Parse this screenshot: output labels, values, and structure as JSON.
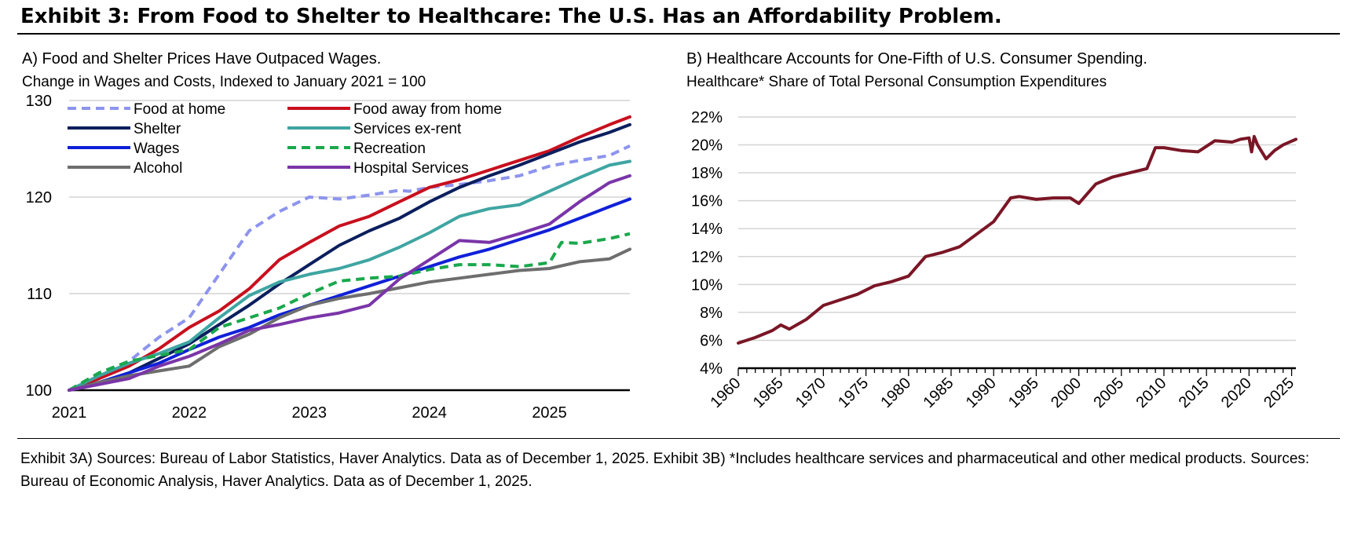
{
  "exhibit_title": "Exhibit 3: From Food to Shelter to Healthcare: The U.S. Has an Affordability Problem.",
  "footnote": "Exhibit 3A) Sources: Bureau of Labor Statistics, Haver Analytics. Data as of December 1, 2025. Exhibit 3B) *Includes healthcare services and pharmaceutical and other medical products. Sources: Bureau of Economic Analysis, Haver Analytics. Data as of December 1, 2025.",
  "chart_data": [
    {
      "type": "line",
      "title": "A) Food and Shelter Prices Have Outpaced Wages.",
      "subtitle": "Change in Wages and Costs, Indexed to January 2021 = 100",
      "xlabel": "",
      "ylabel": "",
      "xlim": [
        2021,
        2025.67
      ],
      "ylim": [
        100,
        130
      ],
      "x_ticks": [
        "2021",
        "2022",
        "2023",
        "2024",
        "2025"
      ],
      "y_ticks": [
        "100",
        "110",
        "120",
        "130"
      ],
      "legend_position": "top-left",
      "series": [
        {
          "name": "Food at home",
          "color": "#8d94ee",
          "dash": "dashed",
          "x": [
            2021,
            2021.25,
            2021.5,
            2021.75,
            2022,
            2022.25,
            2022.5,
            2022.75,
            2023,
            2023.25,
            2023.5,
            2023.75,
            2023.83,
            2024,
            2024.25,
            2024.5,
            2024.75,
            2025,
            2025.25,
            2025.5,
            2025.67
          ],
          "y": [
            100,
            101.5,
            103,
            105.5,
            107.5,
            112,
            116.5,
            118.5,
            120,
            119.8,
            120.2,
            120.7,
            120.6,
            121,
            121.3,
            121.7,
            122.2,
            123.2,
            123.8,
            124.3,
            125.3
          ]
        },
        {
          "name": "Food away from home",
          "color": "#c8101e",
          "dash": "solid",
          "x": [
            2021,
            2021.25,
            2021.5,
            2021.75,
            2022,
            2022.25,
            2022.5,
            2022.75,
            2023,
            2023.25,
            2023.5,
            2023.75,
            2024,
            2024.25,
            2024.5,
            2024.75,
            2025,
            2025.25,
            2025.5,
            2025.67
          ],
          "y": [
            100,
            101.2,
            102.5,
            104.3,
            106.5,
            108.2,
            110.5,
            113.5,
            115.3,
            117,
            118,
            119.5,
            121,
            121.8,
            122.8,
            123.8,
            124.8,
            126.2,
            127.5,
            128.3
          ]
        },
        {
          "name": "Shelter",
          "color": "#0b1f5e",
          "dash": "solid",
          "x": [
            2021,
            2021.25,
            2021.5,
            2021.75,
            2022,
            2022.25,
            2022.5,
            2022.75,
            2023,
            2023.25,
            2023.5,
            2023.75,
            2024,
            2024.25,
            2024.5,
            2024.75,
            2025,
            2025.25,
            2025.5,
            2025.67
          ],
          "y": [
            100,
            100.8,
            101.8,
            103.3,
            104.8,
            106.8,
            108.8,
            111,
            113,
            115,
            116.5,
            117.8,
            119.5,
            121,
            122.2,
            123.3,
            124.5,
            125.7,
            126.7,
            127.5
          ]
        },
        {
          "name": "Services ex-rent",
          "color": "#3fa5a2",
          "dash": "solid",
          "x": [
            2021,
            2021.25,
            2021.5,
            2021.75,
            2022,
            2022.25,
            2022.5,
            2022.75,
            2023,
            2023.25,
            2023.5,
            2023.75,
            2024,
            2024.25,
            2024.5,
            2024.75,
            2025,
            2025.25,
            2025.5,
            2025.67
          ],
          "y": [
            100,
            101.5,
            102.8,
            103.8,
            105,
            107.5,
            109.8,
            111.2,
            112,
            112.6,
            113.5,
            114.8,
            116.3,
            118,
            118.8,
            119.2,
            120.6,
            122,
            123.3,
            123.7
          ]
        },
        {
          "name": "Wages",
          "color": "#1020d8",
          "dash": "solid",
          "x": [
            2021,
            2021.25,
            2021.5,
            2021.75,
            2022,
            2022.25,
            2022.5,
            2022.75,
            2023,
            2023.25,
            2023.5,
            2023.75,
            2024,
            2024.25,
            2024.5,
            2024.75,
            2025,
            2025.25,
            2025.5,
            2025.67
          ],
          "y": [
            100,
            100.8,
            101.8,
            102.8,
            104.2,
            105.5,
            106.5,
            107.8,
            108.8,
            109.8,
            110.8,
            111.8,
            112.8,
            113.8,
            114.6,
            115.6,
            116.6,
            117.8,
            119,
            119.8
          ]
        },
        {
          "name": "Recreation",
          "color": "#1aa84c",
          "dash": "dashed",
          "x": [
            2021,
            2021.25,
            2021.5,
            2021.75,
            2022,
            2022.25,
            2022.5,
            2022.75,
            2023,
            2023.25,
            2023.5,
            2023.75,
            2024,
            2024.25,
            2024.5,
            2024.75,
            2025,
            2025.1,
            2025.25,
            2025.5,
            2025.67
          ],
          "y": [
            100,
            101.8,
            103,
            103.6,
            104.2,
            106.5,
            107.5,
            108.5,
            110,
            111.3,
            111.6,
            111.8,
            112.5,
            113,
            113,
            112.8,
            113.2,
            115.3,
            115.2,
            115.7,
            116.2
          ]
        },
        {
          "name": "Alcohol",
          "color": "#6e6e6e",
          "dash": "solid",
          "x": [
            2021,
            2021.25,
            2021.5,
            2021.75,
            2022,
            2022.25,
            2022.5,
            2022.75,
            2023,
            2023.25,
            2023.5,
            2023.75,
            2024,
            2024.25,
            2024.5,
            2024.75,
            2025,
            2025.25,
            2025.5,
            2025.67
          ],
          "y": [
            100,
            100.8,
            101.5,
            102,
            102.5,
            104.5,
            105.8,
            107.5,
            108.8,
            109.5,
            110,
            110.6,
            111.2,
            111.6,
            112,
            112.4,
            112.6,
            113.3,
            113.6,
            114.6
          ]
        },
        {
          "name": "Hospital Services",
          "color": "#7a35a8",
          "dash": "solid",
          "x": [
            2021,
            2021.25,
            2021.5,
            2021.75,
            2022,
            2022.25,
            2022.5,
            2022.75,
            2023,
            2023.25,
            2023.5,
            2023.75,
            2024,
            2024.25,
            2024.5,
            2024.75,
            2025,
            2025.25,
            2025.5,
            2025.67
          ],
          "y": [
            100,
            100.6,
            101.2,
            102.5,
            103.5,
            104.8,
            106.2,
            106.8,
            107.5,
            108,
            108.8,
            111.5,
            113.5,
            115.5,
            115.3,
            116.2,
            117.2,
            119.5,
            121.5,
            122.2
          ]
        }
      ]
    },
    {
      "type": "line",
      "title": "B) Healthcare Accounts for One-Fifth of U.S. Consumer Spending.",
      "subtitle": "Healthcare* Share of Total Personal Consumption Expenditures",
      "xlabel": "",
      "ylabel": "",
      "xlim": [
        1960,
        2025.5
      ],
      "ylim": [
        4,
        22
      ],
      "x_ticks": [
        "1960",
        "1965",
        "1970",
        "1975",
        "1980",
        "1985",
        "1990",
        "1995",
        "2000",
        "2005",
        "2010",
        "2015",
        "2020",
        "2025"
      ],
      "y_ticks": [
        "4%",
        "6%",
        "8%",
        "10%",
        "12%",
        "14%",
        "16%",
        "18%",
        "20%",
        "22%"
      ],
      "series": [
        {
          "name": "Healthcare share of PCE (%)",
          "color": "#7a1626",
          "dash": "solid",
          "x": [
            1960,
            1962,
            1964,
            1965,
            1966,
            1968,
            1970,
            1972,
            1974,
            1976,
            1978,
            1980,
            1982,
            1984,
            1986,
            1988,
            1990,
            1992,
            1993,
            1995,
            1997,
            1999,
            2000,
            2002,
            2004,
            2006,
            2008,
            2009,
            2010,
            2012,
            2014,
            2016,
            2018,
            2019,
            2020,
            2020.3,
            2020.6,
            2021,
            2022,
            2023,
            2024,
            2025.5
          ],
          "y": [
            5.8,
            6.2,
            6.7,
            7.1,
            6.8,
            7.5,
            8.5,
            8.9,
            9.3,
            9.9,
            10.2,
            10.6,
            12.0,
            12.3,
            12.7,
            13.6,
            14.5,
            16.2,
            16.3,
            16.1,
            16.2,
            16.2,
            15.8,
            17.2,
            17.7,
            18.0,
            18.3,
            19.8,
            19.8,
            19.6,
            19.5,
            20.3,
            20.2,
            20.4,
            20.5,
            19.5,
            20.6,
            20.0,
            19.0,
            19.6,
            20.0,
            20.4
          ]
        }
      ]
    }
  ]
}
